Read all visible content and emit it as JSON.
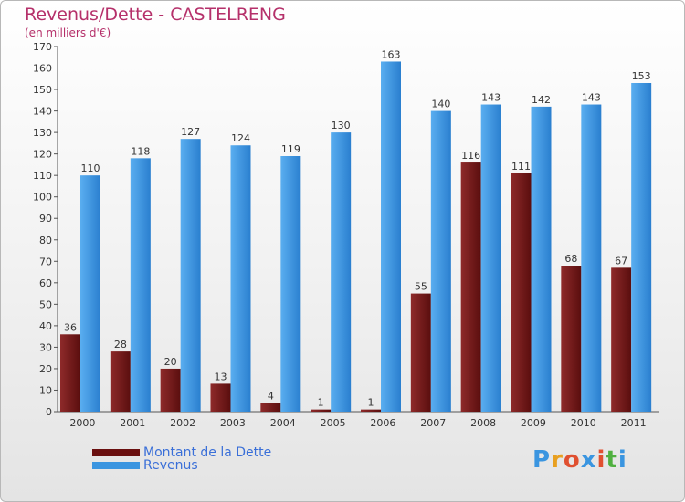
{
  "chart_data": {
    "type": "bar",
    "title": "Revenus/Dette - CASTELRENG",
    "subtitle": "(en milliers d'€)",
    "categories": [
      "2000",
      "2001",
      "2002",
      "2003",
      "2004",
      "2005",
      "2006",
      "2007",
      "2008",
      "2009",
      "2010",
      "2011"
    ],
    "series": [
      {
        "name": "Montant de la Dette",
        "color": "#7a1a1a",
        "values": [
          36,
          28,
          20,
          13,
          4,
          1,
          1,
          55,
          116,
          111,
          68,
          67
        ]
      },
      {
        "name": "Revenus",
        "color": "#3a95e0",
        "values": [
          110,
          118,
          127,
          124,
          119,
          130,
          163,
          140,
          143,
          142,
          143,
          153
        ]
      }
    ],
    "ylim": [
      0,
      170
    ],
    "ytick_step": 10,
    "grid": false,
    "xlabel": "",
    "ylabel": "",
    "legend_position": "bottom-left"
  },
  "brand": {
    "text": "Proxiti",
    "letter_colors": [
      "#3a95e0",
      "#e8a020",
      "#e05030",
      "#3a95e0",
      "#e05030",
      "#50b040",
      "#3a95e0"
    ]
  }
}
